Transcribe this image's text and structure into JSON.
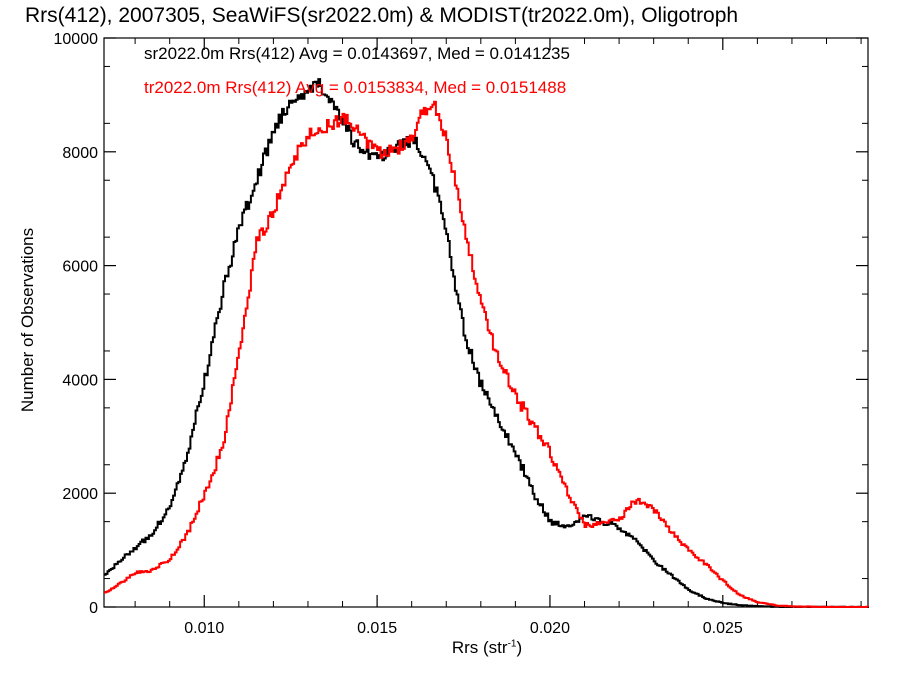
{
  "chart_data": {
    "type": "line",
    "title": "Rrs(412), 2007305, SeaWiFS(sr2022.0m) & MODIST(tr2022.0m), Oligotroph",
    "xlabel_main": "Rrs (str",
    "xlabel_sup": "-1",
    "xlabel_close": ")",
    "ylabel": "Number of Observations",
    "xlim": [
      0.0071,
      0.0292
    ],
    "ylim": [
      0,
      10000
    ],
    "xticks": [
      0.01,
      0.015,
      0.02,
      0.025
    ],
    "xtick_labels": [
      "0.010",
      "0.015",
      "0.020",
      "0.025"
    ],
    "yticks": [
      0,
      2000,
      4000,
      6000,
      8000,
      10000
    ],
    "ytick_labels": [
      "0",
      "2000",
      "4000",
      "6000",
      "8000",
      "10000"
    ],
    "grid": false,
    "series": [
      {
        "name": "sr2022.0m",
        "annotation": "sr2022.0m Rrs(412) Avg = 0.0143697, Med = 0.0141235",
        "color": "#000000",
        "x": [
          0.0071,
          0.0075,
          0.008,
          0.0085,
          0.009,
          0.0095,
          0.01,
          0.0105,
          0.011,
          0.0115,
          0.012,
          0.0125,
          0.013,
          0.0133,
          0.0136,
          0.014,
          0.0145,
          0.015,
          0.0155,
          0.0158,
          0.0161,
          0.0165,
          0.017,
          0.0175,
          0.018,
          0.0185,
          0.019,
          0.0195,
          0.02,
          0.0205,
          0.021,
          0.0215,
          0.022,
          0.0225,
          0.023,
          0.0235,
          0.024,
          0.0245,
          0.025,
          0.0255,
          0.026,
          0.0265,
          0.027,
          0.0292
        ],
        "y": [
          550,
          800,
          1050,
          1300,
          1800,
          2700,
          4000,
          5500,
          6700,
          7500,
          8400,
          8900,
          9100,
          9200,
          8900,
          8500,
          8000,
          7900,
          8100,
          8200,
          8150,
          7800,
          6500,
          4800,
          3900,
          3300,
          2700,
          2000,
          1500,
          1400,
          1600,
          1500,
          1400,
          1150,
          800,
          550,
          300,
          150,
          70,
          30,
          15,
          5,
          0,
          0
        ]
      },
      {
        "name": "tr2022.0m",
        "annotation": "tr2022.0m Rrs(412) Avg = 0.0153834, Med = 0.0151488",
        "color": "#ff0000",
        "x": [
          0.0071,
          0.0075,
          0.008,
          0.0085,
          0.009,
          0.0095,
          0.01,
          0.0105,
          0.011,
          0.0115,
          0.012,
          0.0125,
          0.013,
          0.0135,
          0.014,
          0.0145,
          0.015,
          0.0155,
          0.016,
          0.0163,
          0.0166,
          0.017,
          0.0175,
          0.018,
          0.0185,
          0.019,
          0.0195,
          0.02,
          0.0205,
          0.021,
          0.0215,
          0.022,
          0.0223,
          0.0226,
          0.023,
          0.0235,
          0.024,
          0.0245,
          0.025,
          0.0255,
          0.026,
          0.0265,
          0.027,
          0.0275,
          0.028,
          0.0292
        ],
        "y": [
          250,
          400,
          600,
          650,
          850,
          1300,
          2000,
          2800,
          4500,
          6400,
          7000,
          7800,
          8300,
          8450,
          8600,
          8300,
          8000,
          8000,
          8300,
          8700,
          8900,
          8200,
          6700,
          5300,
          4300,
          3700,
          3200,
          2700,
          2000,
          1450,
          1450,
          1550,
          1800,
          1850,
          1700,
          1300,
          1000,
          750,
          450,
          200,
          80,
          30,
          10,
          5,
          0,
          0
        ]
      }
    ]
  }
}
